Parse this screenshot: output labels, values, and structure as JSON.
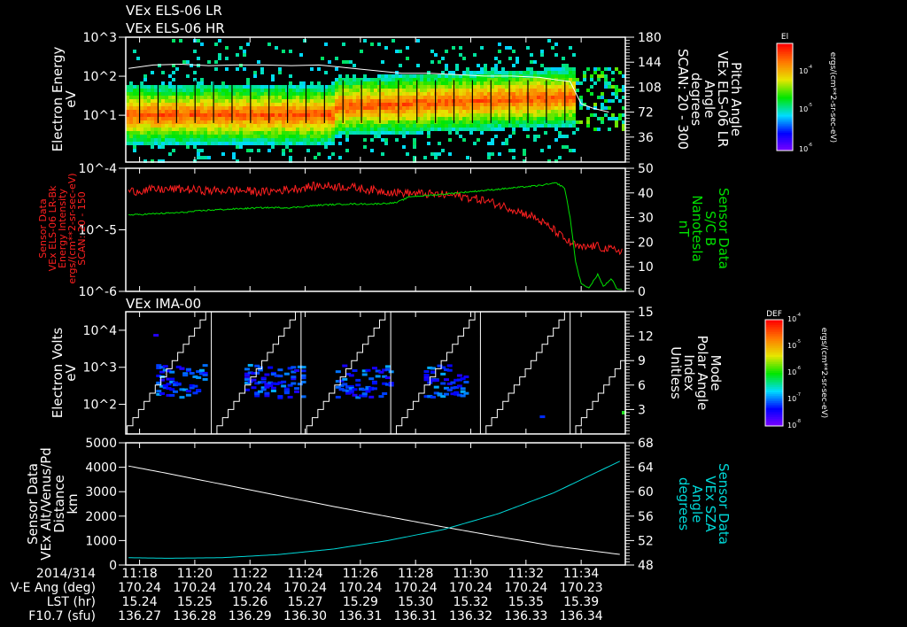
{
  "header": {
    "line1": "VEx ELS-06 LR",
    "line2": "VEx ELS-06 HR"
  },
  "colors": {
    "red": "#ff2020",
    "green": "#00e000",
    "cyan": "#00d8d8",
    "white": "#ffffff"
  },
  "chart_data": [
    {
      "type": "heatmap",
      "id": "els",
      "left_label": [
        "Electron Energy",
        "eV"
      ],
      "right_label": [
        "Pitch Angle",
        "VEx ELS-06 LR",
        "Angle",
        "degrees",
        "SCAN: 20 - 300"
      ],
      "yticks_left": [
        "10^3",
        "10^2",
        "10^1"
      ],
      "ylim_log": [
        -0.2,
        3
      ],
      "yticks_right": [
        "180",
        "144",
        "108",
        "72",
        "36"
      ],
      "ylim_right": [
        0,
        180
      ],
      "colorbar": {
        "title": "El",
        "ticks": [
          "10^-4",
          "10^-5",
          "10^-6"
        ],
        "unit": "ergs/(cm**2-sr-sec-eV)"
      },
      "pitch_angle_line": [
        [
          17.6,
          135
        ],
        [
          18.5,
          140
        ],
        [
          19.5,
          141
        ],
        [
          20.5,
          139
        ],
        [
          21.5,
          140
        ],
        [
          22.5,
          140
        ],
        [
          23.5,
          139
        ],
        [
          24.5,
          140
        ],
        [
          25.5,
          136
        ],
        [
          26.5,
          132
        ],
        [
          27.5,
          128
        ],
        [
          28.5,
          128
        ],
        [
          29.5,
          126
        ],
        [
          30.5,
          124
        ],
        [
          31.5,
          124
        ],
        [
          32.5,
          122
        ],
        [
          33.2,
          118
        ],
        [
          33.6,
          116
        ],
        [
          34,
          84
        ],
        [
          34.4,
          78
        ],
        [
          35,
          72
        ]
      ]
    },
    {
      "type": "line",
      "id": "intensity",
      "left_label": [
        "Sensor Data",
        "VEx ELS-06 LR-Bk",
        "Energy Intensity",
        "ergs/(cm**2-sr-sec-eV)",
        "SCAN: 20 - 150"
      ],
      "right_label": [
        "Sensor Data",
        "S/C B",
        "Nanotesla",
        "nT"
      ],
      "yticks_left": [
        "10^-4",
        "10^-5",
        "10^-6"
      ],
      "ylim_left_log": [
        -6,
        -4
      ],
      "yticks_right": [
        "50",
        "40",
        "30",
        "20",
        "10",
        "0"
      ],
      "ylim_right": [
        0,
        50
      ],
      "series": [
        {
          "name": "Energy Intensity",
          "color": "#ff2020",
          "axis": "left",
          "points": [
            [
              17.6,
              4.2e-05
            ],
            [
              18.5,
              4.5e-05
            ],
            [
              19.5,
              4.6e-05
            ],
            [
              20.5,
              4.3e-05
            ],
            [
              21.5,
              4.4e-05
            ],
            [
              22.5,
              4.1e-05
            ],
            [
              23.5,
              4.6e-05
            ],
            [
              24.5,
              5.2e-05
            ],
            [
              25.5,
              5e-05
            ],
            [
              26.5,
              4.4e-05
            ],
            [
              27.5,
              4e-05
            ],
            [
              28.5,
              3.8e-05
            ],
            [
              29.5,
              3.6e-05
            ],
            [
              30.5,
              3e-05
            ],
            [
              31.5,
              2.2e-05
            ],
            [
              32.3,
              1.6e-05
            ],
            [
              33,
              1e-05
            ],
            [
              33.5,
              6.5e-06
            ],
            [
              34,
              5e-06
            ],
            [
              34.5,
              5.5e-06
            ],
            [
              35,
              4.8e-06
            ],
            [
              35.5,
              4.6e-06
            ]
          ]
        },
        {
          "name": "S/C B",
          "color": "#00e000",
          "axis": "right",
          "points": [
            [
              17.6,
              31
            ],
            [
              18.5,
              31.5
            ],
            [
              19.5,
              32
            ],
            [
              20.5,
              33
            ],
            [
              21.5,
              33.5
            ],
            [
              22.5,
              34
            ],
            [
              23.5,
              34
            ],
            [
              24.5,
              35
            ],
            [
              25.5,
              35.5
            ],
            [
              26.5,
              35.5
            ],
            [
              27.3,
              36
            ],
            [
              27.8,
              38.5
            ],
            [
              28.5,
              39
            ],
            [
              29.5,
              40
            ],
            [
              30.5,
              41
            ],
            [
              31.5,
              42
            ],
            [
              32.5,
              43
            ],
            [
              33.1,
              44
            ],
            [
              33.4,
              42
            ],
            [
              33.6,
              30
            ],
            [
              33.8,
              12
            ],
            [
              34,
              3
            ],
            [
              34.3,
              1.5
            ],
            [
              34.6,
              7
            ],
            [
              34.8,
              2
            ],
            [
              35.1,
              5
            ],
            [
              35.3,
              1
            ],
            [
              35.5,
              0.5
            ]
          ]
        }
      ]
    },
    {
      "type": "heatmap",
      "id": "ima",
      "title": "VEx IMA-00",
      "left_label": [
        "Electron Volts",
        "eV"
      ],
      "right_label": [
        "Mode",
        "Polar Angle",
        "Index",
        "Unitless"
      ],
      "yticks_left": [
        "10^4",
        "10^3",
        "10^2"
      ],
      "ylim_log": [
        1.2,
        4.5
      ],
      "yticks_right": [
        "15",
        "12",
        "9",
        "6",
        "3"
      ],
      "ylim_right": [
        0,
        15
      ],
      "sweep_resets": [
        20.6,
        23.85,
        27.1,
        30.35,
        33.6
      ],
      "colorbar": {
        "title": "DEF",
        "ticks": [
          "10^-4",
          "10^-5",
          "10^-6",
          "10^-7",
          "10^-8"
        ],
        "unit": "ergs/(cm**2-sr-sec-eV)"
      }
    },
    {
      "type": "line",
      "id": "geometry",
      "left_label": [
        "Sensor Data",
        "VEx Alt/Venus/Pd",
        "Distance",
        "km"
      ],
      "right_label": [
        "Sensor Data",
        "VEx SZA",
        "Angle",
        "degrees"
      ],
      "yticks_left": [
        "5000",
        "4000",
        "3000",
        "2000",
        "1000",
        "0"
      ],
      "ylim_left": [
        0,
        5000
      ],
      "yticks_right": [
        "68",
        "64",
        "60",
        "56",
        "52",
        "48"
      ],
      "ylim_right": [
        48,
        68
      ],
      "series": [
        {
          "name": "Altitude",
          "color": "#ffffff",
          "axis": "left",
          "points": [
            [
              17.6,
              4050
            ],
            [
              19,
              3750
            ],
            [
              21,
              3300
            ],
            [
              23,
              2850
            ],
            [
              25,
              2400
            ],
            [
              27,
              1980
            ],
            [
              29,
              1560
            ],
            [
              31,
              1160
            ],
            [
              33,
              780
            ],
            [
              35.5,
              420
            ]
          ]
        },
        {
          "name": "SZA",
          "color": "#00d8d8",
          "axis": "right",
          "points": [
            [
              17.6,
              49.2
            ],
            [
              19,
              49.1
            ],
            [
              21,
              49.2
            ],
            [
              23,
              49.7
            ],
            [
              25,
              50.6
            ],
            [
              27,
              52
            ],
            [
              29,
              53.8
            ],
            [
              31,
              56.4
            ],
            [
              33,
              59.8
            ],
            [
              35.5,
              65.2
            ]
          ]
        }
      ]
    }
  ],
  "xaxis": {
    "range_minutes": [
      17.5,
      35.6
    ],
    "row_labels": [
      "2014/314",
      "V-E Ang (deg)",
      "LST (hr)",
      "F10.7 (sfu)"
    ],
    "ticks": [
      {
        "t": 18,
        "time": "11:18",
        "ve": "170.24",
        "lst": "15.24",
        "f107": "136.27"
      },
      {
        "t": 20,
        "time": "11:20",
        "ve": "170.24",
        "lst": "15.25",
        "f107": "136.28"
      },
      {
        "t": 22,
        "time": "11:22",
        "ve": "170.24",
        "lst": "15.26",
        "f107": "136.29"
      },
      {
        "t": 24,
        "time": "11:24",
        "ve": "170.24",
        "lst": "15.27",
        "f107": "136.30"
      },
      {
        "t": 26,
        "time": "11:26",
        "ve": "170.24",
        "lst": "15.29",
        "f107": "136.31"
      },
      {
        "t": 28,
        "time": "11:28",
        "ve": "170.24",
        "lst": "15.30",
        "f107": "136.31"
      },
      {
        "t": 30,
        "time": "11:30",
        "ve": "170.24",
        "lst": "15.32",
        "f107": "136.32"
      },
      {
        "t": 32,
        "time": "11:32",
        "ve": "170.24",
        "lst": "15.35",
        "f107": "136.33"
      },
      {
        "t": 34,
        "time": "11:34",
        "ve": "170.23",
        "lst": "15.39",
        "f107": "136.34"
      }
    ]
  }
}
